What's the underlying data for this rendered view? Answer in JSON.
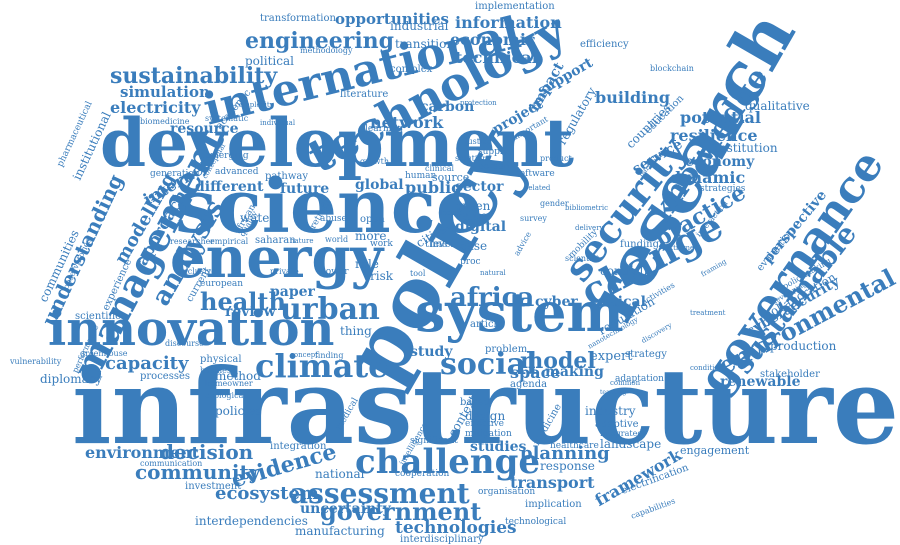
{
  "color": "#3a7dbc",
  "words": [
    "infrastructure",
    "development",
    "science",
    "policy",
    "research",
    "system",
    "innovation",
    "energy",
    "technology",
    "international",
    "governance",
    "security",
    "knowledge",
    "management",
    "change",
    "sustainable",
    "climate",
    "challenge",
    "environmental",
    "assessment",
    "urban",
    "analysis",
    "social",
    "health",
    "model",
    "practice",
    "africa",
    "evidence",
    "government",
    "understanding",
    "sustainability",
    "engineering",
    "electricity",
    "simulation",
    "network",
    "economic",
    "technical",
    "information",
    "opportunities",
    "transformation",
    "implementation",
    "industrial",
    "blockchain",
    "efficiency",
    "resilience",
    "potential",
    "qualitative",
    "economy",
    "institution",
    "perspective",
    "building",
    "service",
    "dynamic",
    "cybersecurity",
    "collaboration",
    "renewable",
    "production",
    "engagement",
    "framework",
    "electrification",
    "environment",
    "decision",
    "community",
    "ecosystem",
    "technologies",
    "interdisciplinary",
    "manufacturing",
    "interdependencies",
    "uncertainty",
    "planning",
    "transport",
    "studies",
    "response",
    "industry",
    "capacity",
    "method",
    "policies",
    "diplomacy",
    "modelling",
    "approach",
    "internet",
    "different",
    "resource",
    "future",
    "global",
    "public",
    "sector",
    "digital",
    "cities",
    "review",
    "paper",
    "study",
    "space",
    "making",
    "expert",
    "critical",
    "regulation",
    "stakeholder",
    "communities",
    "institutional",
    "pharmaceutical",
    "scientific",
    "experience",
    "observatories",
    "vulnerability",
    "physical",
    "business",
    "integration",
    "design",
    "based",
    "effective",
    "mitigation",
    "landscape",
    "healthcare",
    "adaptive",
    "integrated",
    "cyber",
    "case",
    "level",
    "african",
    "water",
    "quality",
    "emerging",
    "advanced",
    "pathway",
    "carbon",
    "project",
    "impact",
    "support",
    "regulatory",
    "countries",
    "education",
    "political",
    "methodology",
    "transition",
    "complex",
    "literature",
    "academic",
    "systematic",
    "biomedicine",
    "generation",
    "current",
    "european",
    "researcher",
    "empirical",
    "saharan",
    "nature",
    "world",
    "more",
    "role",
    "risk",
    "green",
    "source",
    "person",
    "supply",
    "software",
    "value",
    "human",
    "time",
    "thing",
    "article",
    "agenda",
    "problem",
    "strategy",
    "adaptation",
    "nanotechnology",
    "medicine",
    "context",
    "significant",
    "national",
    "cooperation",
    "organisation",
    "implication",
    "technological",
    "investment",
    "communication",
    "concept",
    "finding",
    "processes",
    "greenhouse",
    "homeowner",
    "ecological",
    "medical",
    "intelligence",
    "discourse",
    "performance",
    "learning",
    "growth",
    "strategies",
    "funding",
    "control",
    "common",
    "mobility",
    "teaching",
    "discovery",
    "treatment",
    "capabilities",
    "condition",
    "standard",
    "protection",
    "clinical",
    "gender",
    "survey",
    "justice",
    "retrofit",
    "abuse",
    "open",
    "proc",
    "natural",
    "tool",
    "work",
    "local",
    "related",
    "conceptual",
    "developing",
    "evaluation",
    "policymaking",
    "activities",
    "interaction",
    "extreme",
    "private",
    "inclusive",
    "power",
    "product",
    "solution",
    "particular",
    "important",
    "complexity",
    "individual",
    "delivery",
    "scientist",
    "advice",
    "bibliometric",
    "framing",
    "potential2"
  ]
}
